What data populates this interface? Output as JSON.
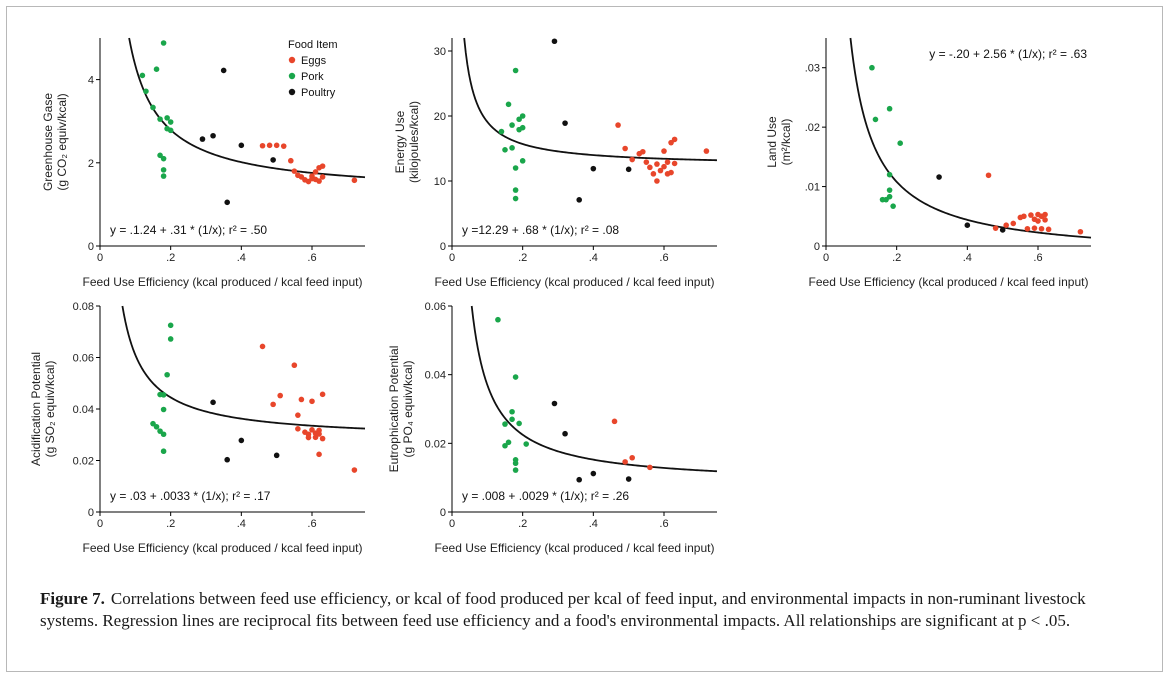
{
  "figure": {
    "label": "Figure 7.",
    "caption": "Correlations between feed use efficiency, or kcal of food produced per kcal of feed input, and environmental impacts in non-ruminant livestock systems. Regression lines are reciprocal fits between feed use efficiency and a food's environmental impacts. All relationships are significant at p < .05."
  },
  "legend": {
    "title": "Food Item",
    "items": [
      {
        "name": "Eggs",
        "color": "#e8462b"
      },
      {
        "name": "Pork",
        "color": "#1aa64b"
      },
      {
        "name": "Poultry",
        "color": "#111111"
      }
    ]
  },
  "chart_data": [
    {
      "id": "ghg",
      "type": "scatter",
      "ylabel_lines": [
        "Greenhouse Gase",
        "(g CO₂ equiv/kcal)"
      ],
      "xlabel": "Feed Use Efficiency (kcal produced / kcal feed input)",
      "xlim": [
        0,
        0.75
      ],
      "ylim": [
        0,
        5
      ],
      "xticks": [
        {
          "v": 0,
          "l": "0"
        },
        {
          "v": 0.2,
          "l": ".2"
        },
        {
          "v": 0.4,
          "l": ".4"
        },
        {
          "v": 0.6,
          "l": ".6"
        }
      ],
      "yticks": [
        {
          "v": 0,
          "l": "0"
        },
        {
          "v": 2,
          "l": "2"
        },
        {
          "v": 4,
          "l": "4"
        }
      ],
      "fit": {
        "a": 1.24,
        "b": 0.31,
        "equation": "y = .1.24 + .31 * (1/x); r² = .50"
      },
      "series": [
        {
          "name": "Eggs",
          "points": [
            [
              0.46,
              2.41
            ],
            [
              0.48,
              2.42
            ],
            [
              0.5,
              2.42
            ],
            [
              0.52,
              2.4
            ],
            [
              0.54,
              2.05
            ],
            [
              0.55,
              1.8
            ],
            [
              0.56,
              1.7
            ],
            [
              0.57,
              1.66
            ],
            [
              0.58,
              1.59
            ],
            [
              0.59,
              1.55
            ],
            [
              0.6,
              1.62
            ],
            [
              0.6,
              1.68
            ],
            [
              0.61,
              1.6
            ],
            [
              0.61,
              1.78
            ],
            [
              0.62,
              1.56
            ],
            [
              0.62,
              1.88
            ],
            [
              0.63,
              1.66
            ],
            [
              0.63,
              1.92
            ],
            [
              0.72,
              1.58
            ]
          ]
        },
        {
          "name": "Pork",
          "points": [
            [
              0.12,
              4.1
            ],
            [
              0.13,
              3.72
            ],
            [
              0.15,
              3.33
            ],
            [
              0.16,
              4.25
            ],
            [
              0.17,
              2.18
            ],
            [
              0.17,
              3.05
            ],
            [
              0.18,
              4.88
            ],
            [
              0.18,
              2.1
            ],
            [
              0.18,
              1.83
            ],
            [
              0.18,
              1.68
            ],
            [
              0.19,
              2.82
            ],
            [
              0.19,
              3.08
            ],
            [
              0.2,
              2.78
            ],
            [
              0.2,
              2.98
            ]
          ]
        },
        {
          "name": "Poultry",
          "points": [
            [
              0.29,
              2.57
            ],
            [
              0.32,
              2.65
            ],
            [
              0.35,
              4.22
            ],
            [
              0.36,
              1.05
            ],
            [
              0.4,
              2.42
            ],
            [
              0.49,
              2.07
            ]
          ]
        }
      ]
    },
    {
      "id": "energy",
      "type": "scatter",
      "ylabel_lines": [
        "Energy Use",
        "(kilojoules/kcal)"
      ],
      "xlabel": "Feed Use Efficiency (kcal produced / kcal feed input)",
      "xlim": [
        0,
        0.75
      ],
      "ylim": [
        0,
        32
      ],
      "xticks": [
        {
          "v": 0,
          "l": "0"
        },
        {
          "v": 0.2,
          "l": ".2"
        },
        {
          "v": 0.4,
          "l": ".4"
        },
        {
          "v": 0.6,
          "l": ".6"
        }
      ],
      "yticks": [
        {
          "v": 0,
          "l": "0"
        },
        {
          "v": 10,
          "l": "10"
        },
        {
          "v": 20,
          "l": "20"
        },
        {
          "v": 30,
          "l": "30"
        }
      ],
      "fit": {
        "a": 12.29,
        "b": 0.68,
        "equation": "y =12.29 + .68 * (1/x); r² = .08"
      },
      "series": [
        {
          "name": "Eggs",
          "points": [
            [
              0.47,
              18.6
            ],
            [
              0.49,
              15.0
            ],
            [
              0.51,
              13.3
            ],
            [
              0.53,
              14.2
            ],
            [
              0.54,
              14.5
            ],
            [
              0.55,
              12.9
            ],
            [
              0.56,
              12.1
            ],
            [
              0.57,
              11.1
            ],
            [
              0.58,
              12.6
            ],
            [
              0.58,
              10.0
            ],
            [
              0.59,
              11.6
            ],
            [
              0.6,
              14.6
            ],
            [
              0.6,
              12.2
            ],
            [
              0.61,
              11.1
            ],
            [
              0.61,
              12.9
            ],
            [
              0.62,
              15.9
            ],
            [
              0.62,
              11.3
            ],
            [
              0.63,
              12.7
            ],
            [
              0.63,
              16.4
            ],
            [
              0.72,
              14.6
            ]
          ]
        },
        {
          "name": "Pork",
          "points": [
            [
              0.14,
              17.6
            ],
            [
              0.15,
              14.8
            ],
            [
              0.16,
              21.8
            ],
            [
              0.17,
              18.6
            ],
            [
              0.17,
              15.1
            ],
            [
              0.18,
              27.0
            ],
            [
              0.18,
              12.0
            ],
            [
              0.18,
              8.6
            ],
            [
              0.18,
              7.3
            ],
            [
              0.19,
              19.5
            ],
            [
              0.19,
              17.9
            ],
            [
              0.2,
              18.2
            ],
            [
              0.2,
              13.1
            ],
            [
              0.2,
              20.0
            ]
          ]
        },
        {
          "name": "Poultry",
          "points": [
            [
              0.29,
              31.5
            ],
            [
              0.32,
              18.9
            ],
            [
              0.36,
              7.1
            ],
            [
              0.4,
              11.9
            ],
            [
              0.5,
              11.8
            ]
          ]
        }
      ]
    },
    {
      "id": "land",
      "type": "scatter",
      "ylabel_lines": [
        "Land Use",
        "(m²/kcal)"
      ],
      "xlabel": "Feed Use Efficiency (kcal produced / kcal feed input)",
      "xlim": [
        0,
        0.75
      ],
      "ylim": [
        0,
        0.035
      ],
      "xticks": [
        {
          "v": 0,
          "l": "0"
        },
        {
          "v": 0.2,
          "l": ".2"
        },
        {
          "v": 0.4,
          "l": ".4"
        },
        {
          "v": 0.6,
          "l": ".6"
        }
      ],
      "yticks": [
        {
          "v": 0,
          "l": "0"
        },
        {
          "v": 0.01,
          "l": ".01"
        },
        {
          "v": 0.02,
          "l": ".02"
        },
        {
          "v": 0.03,
          "l": ".03"
        }
      ],
      "fit": {
        "a": -0.002,
        "b": 0.00256,
        "equation": "y = -.20 + 2.56 * (1/x); r² = .63"
      },
      "series": [
        {
          "name": "Eggs",
          "points": [
            [
              0.46,
              0.0119
            ],
            [
              0.48,
              0.003
            ],
            [
              0.51,
              0.0035
            ],
            [
              0.53,
              0.0038
            ],
            [
              0.55,
              0.0048
            ],
            [
              0.56,
              0.005
            ],
            [
              0.57,
              0.0029
            ],
            [
              0.58,
              0.0052
            ],
            [
              0.59,
              0.0045
            ],
            [
              0.59,
              0.003
            ],
            [
              0.6,
              0.0053
            ],
            [
              0.6,
              0.0042
            ],
            [
              0.61,
              0.005
            ],
            [
              0.61,
              0.0029
            ],
            [
              0.62,
              0.0053
            ],
            [
              0.62,
              0.0044
            ],
            [
              0.63,
              0.0028
            ],
            [
              0.72,
              0.0024
            ]
          ]
        },
        {
          "name": "Pork",
          "points": [
            [
              0.13,
              0.03
            ],
            [
              0.14,
              0.0213
            ],
            [
              0.16,
              0.0078
            ],
            [
              0.17,
              0.0078
            ],
            [
              0.18,
              0.0231
            ],
            [
              0.18,
              0.012
            ],
            [
              0.18,
              0.0094
            ],
            [
              0.18,
              0.0083
            ],
            [
              0.19,
              0.0067
            ],
            [
              0.21,
              0.0173
            ]
          ]
        },
        {
          "name": "Poultry",
          "points": [
            [
              0.32,
              0.0116
            ],
            [
              0.4,
              0.0035
            ],
            [
              0.5,
              0.0027
            ]
          ]
        }
      ]
    },
    {
      "id": "acid",
      "type": "scatter",
      "ylabel_lines": [
        "Acidification Potential",
        "(g SO₂ equiv/kcal)"
      ],
      "xlabel": "Feed Use Efficiency (kcal produced / kcal feed input)",
      "xlim": [
        0,
        0.75
      ],
      "ylim": [
        0,
        0.08
      ],
      "xticks": [
        {
          "v": 0,
          "l": "0"
        },
        {
          "v": 0.2,
          "l": ".2"
        },
        {
          "v": 0.4,
          "l": ".4"
        },
        {
          "v": 0.6,
          "l": ".6"
        }
      ],
      "yticks": [
        {
          "v": 0,
          "l": "0"
        },
        {
          "v": 0.02,
          "l": "0.02"
        },
        {
          "v": 0.04,
          "l": "0.04"
        },
        {
          "v": 0.06,
          "l": "0.06"
        },
        {
          "v": 0.08,
          "l": "0.08"
        }
      ],
      "fit": {
        "a": 0.028,
        "b": 0.0033,
        "equation": "y = .03 + .0033 * (1/x); r² = .17"
      },
      "series": [
        {
          "name": "Eggs",
          "points": [
            [
              0.46,
              0.0643
            ],
            [
              0.49,
              0.0418
            ],
            [
              0.51,
              0.0452
            ],
            [
              0.55,
              0.057
            ],
            [
              0.56,
              0.0376
            ],
            [
              0.56,
              0.0323
            ],
            [
              0.57,
              0.0437
            ],
            [
              0.58,
              0.031
            ],
            [
              0.59,
              0.0302
            ],
            [
              0.59,
              0.0289
            ],
            [
              0.6,
              0.0319
            ],
            [
              0.6,
              0.043
            ],
            [
              0.61,
              0.029
            ],
            [
              0.61,
              0.0306
            ],
            [
              0.62,
              0.0317
            ],
            [
              0.62,
              0.0303
            ],
            [
              0.62,
              0.0224
            ],
            [
              0.63,
              0.0457
            ],
            [
              0.63,
              0.0285
            ],
            [
              0.72,
              0.0163
            ]
          ]
        },
        {
          "name": "Pork",
          "points": [
            [
              0.15,
              0.0343
            ],
            [
              0.16,
              0.0331
            ],
            [
              0.17,
              0.0456
            ],
            [
              0.17,
              0.0314
            ],
            [
              0.18,
              0.0398
            ],
            [
              0.18,
              0.0302
            ],
            [
              0.18,
              0.0236
            ],
            [
              0.18,
              0.0455
            ],
            [
              0.19,
              0.0533
            ],
            [
              0.2,
              0.0725
            ],
            [
              0.2,
              0.0672
            ]
          ]
        },
        {
          "name": "Poultry",
          "points": [
            [
              0.32,
              0.0426
            ],
            [
              0.36,
              0.0203
            ],
            [
              0.4,
              0.0278
            ],
            [
              0.5,
              0.022
            ]
          ]
        }
      ]
    },
    {
      "id": "eutro",
      "type": "scatter",
      "ylabel_lines": [
        "Eutrophication Potential",
        "(g PO₄ equiv/kcal)"
      ],
      "xlabel": "Feed Use Efficiency (kcal produced / kcal feed input)",
      "xlim": [
        0,
        0.75
      ],
      "ylim": [
        0,
        0.06
      ],
      "xticks": [
        {
          "v": 0,
          "l": "0"
        },
        {
          "v": 0.2,
          "l": ".2"
        },
        {
          "v": 0.4,
          "l": ".4"
        },
        {
          "v": 0.6,
          "l": ".6"
        }
      ],
      "yticks": [
        {
          "v": 0,
          "l": "0"
        },
        {
          "v": 0.02,
          "l": "0.02"
        },
        {
          "v": 0.04,
          "l": "0.04"
        },
        {
          "v": 0.06,
          "l": "0.06"
        }
      ],
      "fit": {
        "a": 0.008,
        "b": 0.0029,
        "equation": "y = .008 + .0029 * (1/x); r² = .26"
      },
      "series": [
        {
          "name": "Eggs",
          "points": [
            [
              0.46,
              0.0264
            ],
            [
              0.49,
              0.0146
            ],
            [
              0.51,
              0.0158
            ],
            [
              0.56,
              0.013
            ]
          ]
        },
        {
          "name": "Pork",
          "points": [
            [
              0.13,
              0.056
            ],
            [
              0.15,
              0.0256
            ],
            [
              0.15,
              0.0193
            ],
            [
              0.16,
              0.0203
            ],
            [
              0.17,
              0.0292
            ],
            [
              0.17,
              0.027
            ],
            [
              0.18,
              0.0393
            ],
            [
              0.18,
              0.0152
            ],
            [
              0.18,
              0.0142
            ],
            [
              0.18,
              0.0122
            ],
            [
              0.19,
              0.0258
            ],
            [
              0.21,
              0.0198
            ]
          ]
        },
        {
          "name": "Poultry",
          "points": [
            [
              0.29,
              0.0316
            ],
            [
              0.32,
              0.0228
            ],
            [
              0.36,
              0.0094
            ],
            [
              0.4,
              0.0112
            ],
            [
              0.5,
              0.0096
            ]
          ]
        }
      ]
    }
  ]
}
